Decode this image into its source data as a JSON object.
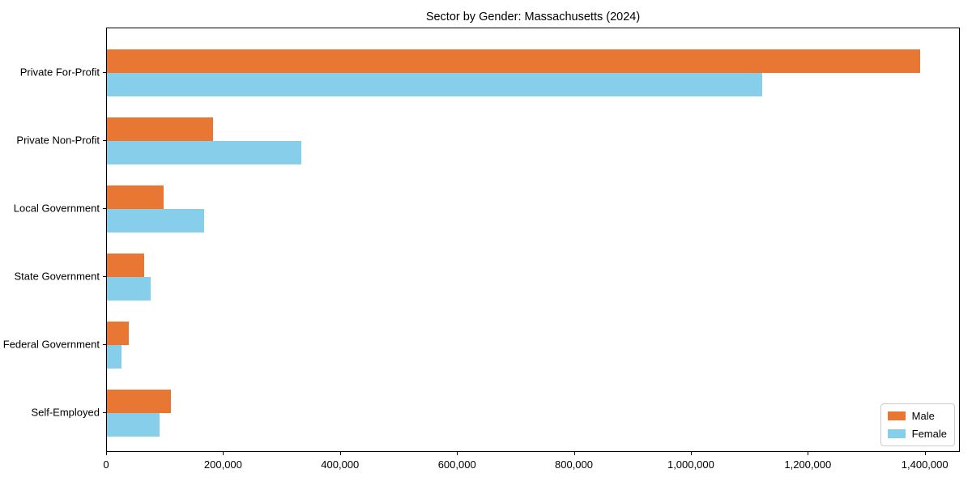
{
  "chart_data": {
    "type": "bar",
    "orientation": "horizontal",
    "title": "Sector by Gender: Massachusetts (2024)",
    "xlabel": "",
    "ylabel": "",
    "grid": false,
    "legend_position": "lower right",
    "xlim": [
      0,
      1460000
    ],
    "categories": [
      "Private For-Profit",
      "Private Non-Profit",
      "Local Government",
      "State Government",
      "Federal Government",
      "Self-Employed"
    ],
    "series": [
      {
        "name": "Male",
        "color": "#e97734",
        "values": [
          1390000,
          181000,
          97000,
          63000,
          38000,
          110000
        ]
      },
      {
        "name": "Female",
        "color": "#87ceeb",
        "values": [
          1120000,
          333000,
          166000,
          75000,
          25000,
          90000
        ]
      }
    ],
    "x_ticks": [
      {
        "value": 0,
        "label": "0"
      },
      {
        "value": 200000,
        "label": "200,000"
      },
      {
        "value": 400000,
        "label": "400,000"
      },
      {
        "value": 600000,
        "label": "600,000"
      },
      {
        "value": 800000,
        "label": "800,000"
      },
      {
        "value": 1000000,
        "label": "1,000,000"
      },
      {
        "value": 1200000,
        "label": "1,200,000"
      },
      {
        "value": 1400000,
        "label": "1,400,000"
      }
    ]
  }
}
